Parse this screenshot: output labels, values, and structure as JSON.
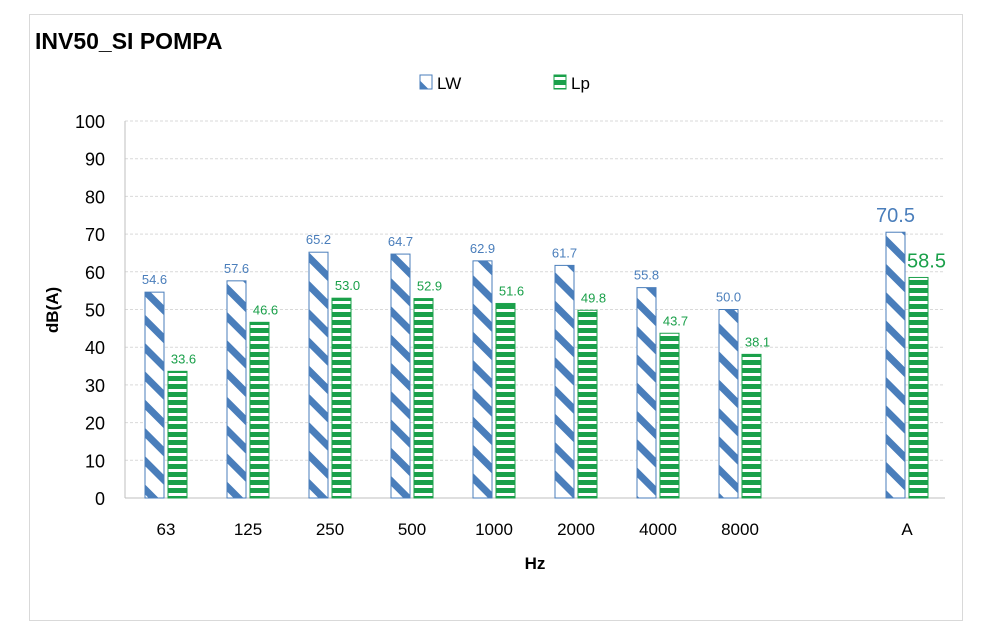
{
  "chart_data": {
    "type": "bar",
    "title": "INV50_SI POMPA",
    "xlabel": "Hz",
    "ylabel": "dB(A)",
    "ylim": [
      0,
      100
    ],
    "yticks": [
      0,
      10,
      20,
      30,
      40,
      50,
      60,
      70,
      80,
      90,
      100
    ],
    "grid": true,
    "legend_position": "top-center",
    "categories": [
      "63",
      "125",
      "250",
      "500",
      "1000",
      "2000",
      "4000",
      "8000",
      "",
      "A"
    ],
    "series": [
      {
        "name": "LW",
        "color": "#4a7ebb",
        "pattern": "diagonal-stripes",
        "values": [
          54.6,
          57.6,
          65.2,
          64.7,
          62.9,
          61.7,
          55.8,
          50.0,
          null,
          70.5
        ],
        "labels": [
          "54.6",
          "57.6",
          "65.2",
          "64.7",
          "62.9",
          "61.7",
          "55.8",
          "50.0",
          null,
          "70.5"
        ]
      },
      {
        "name": "Lp",
        "color": "#1aa04a",
        "pattern": "horizontal-stripes",
        "values": [
          33.6,
          46.6,
          53.0,
          52.9,
          51.6,
          49.8,
          43.7,
          38.1,
          null,
          58.5
        ],
        "labels": [
          "33.6",
          "46.6",
          "53.0",
          "52.9",
          "51.6",
          "49.8",
          "43.7",
          "38.1",
          null,
          "58.5"
        ]
      }
    ]
  }
}
